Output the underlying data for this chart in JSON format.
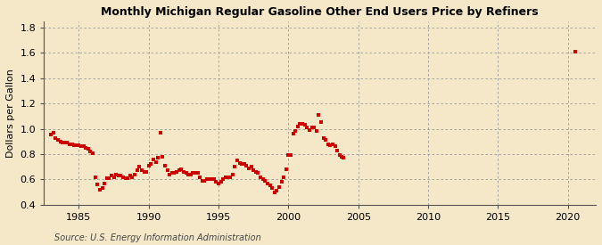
{
  "title": "Monthly Michigan Regular Gasoline Other End Users Price by Refiners",
  "ylabel": "Dollars per Gallon",
  "source": "Source: U.S. Energy Information Administration",
  "background_color": "#f5e8c8",
  "plot_bg_color": "#f5e8c8",
  "marker_color": "#cc0000",
  "xlim": [
    1982.5,
    2022
  ],
  "ylim": [
    0.4,
    1.85
  ],
  "xticks": [
    1985,
    1990,
    1995,
    2000,
    2005,
    2010,
    2015,
    2020
  ],
  "yticks": [
    0.4,
    0.6,
    0.8,
    1.0,
    1.2,
    1.4,
    1.6,
    1.8
  ],
  "data": [
    [
      1983.0,
      0.956
    ],
    [
      1983.17,
      0.97
    ],
    [
      1983.33,
      0.93
    ],
    [
      1983.5,
      0.91
    ],
    [
      1983.67,
      0.9
    ],
    [
      1983.83,
      0.89
    ],
    [
      1984.0,
      0.89
    ],
    [
      1984.17,
      0.89
    ],
    [
      1984.33,
      0.88
    ],
    [
      1984.5,
      0.88
    ],
    [
      1984.67,
      0.87
    ],
    [
      1984.83,
      0.87
    ],
    [
      1985.0,
      0.87
    ],
    [
      1985.17,
      0.86
    ],
    [
      1985.33,
      0.86
    ],
    [
      1985.5,
      0.85
    ],
    [
      1985.67,
      0.84
    ],
    [
      1985.83,
      0.82
    ],
    [
      1986.0,
      0.81
    ],
    [
      1986.17,
      0.62
    ],
    [
      1986.33,
      0.56
    ],
    [
      1986.5,
      0.52
    ],
    [
      1986.67,
      0.53
    ],
    [
      1986.83,
      0.57
    ],
    [
      1987.0,
      0.61
    ],
    [
      1987.17,
      0.61
    ],
    [
      1987.33,
      0.63
    ],
    [
      1987.5,
      0.62
    ],
    [
      1987.67,
      0.64
    ],
    [
      1987.83,
      0.63
    ],
    [
      1988.0,
      0.63
    ],
    [
      1988.17,
      0.62
    ],
    [
      1988.33,
      0.61
    ],
    [
      1988.5,
      0.61
    ],
    [
      1988.67,
      0.63
    ],
    [
      1988.83,
      0.62
    ],
    [
      1989.0,
      0.64
    ],
    [
      1989.17,
      0.67
    ],
    [
      1989.33,
      0.7
    ],
    [
      1989.5,
      0.67
    ],
    [
      1989.67,
      0.66
    ],
    [
      1989.83,
      0.66
    ],
    [
      1990.0,
      0.71
    ],
    [
      1990.17,
      0.72
    ],
    [
      1990.33,
      0.76
    ],
    [
      1990.5,
      0.74
    ],
    [
      1990.67,
      0.77
    ],
    [
      1990.83,
      0.97
    ],
    [
      1991.0,
      0.78
    ],
    [
      1991.17,
      0.71
    ],
    [
      1991.33,
      0.67
    ],
    [
      1991.5,
      0.64
    ],
    [
      1991.67,
      0.65
    ],
    [
      1991.83,
      0.65
    ],
    [
      1992.0,
      0.66
    ],
    [
      1992.17,
      0.67
    ],
    [
      1992.33,
      0.68
    ],
    [
      1992.5,
      0.66
    ],
    [
      1992.67,
      0.65
    ],
    [
      1992.83,
      0.64
    ],
    [
      1993.0,
      0.64
    ],
    [
      1993.17,
      0.65
    ],
    [
      1993.33,
      0.65
    ],
    [
      1993.5,
      0.65
    ],
    [
      1993.67,
      0.62
    ],
    [
      1993.83,
      0.59
    ],
    [
      1994.0,
      0.59
    ],
    [
      1994.17,
      0.6
    ],
    [
      1994.33,
      0.6
    ],
    [
      1994.5,
      0.6
    ],
    [
      1994.67,
      0.6
    ],
    [
      1994.83,
      0.58
    ],
    [
      1995.0,
      0.57
    ],
    [
      1995.17,
      0.58
    ],
    [
      1995.33,
      0.6
    ],
    [
      1995.5,
      0.62
    ],
    [
      1995.67,
      0.62
    ],
    [
      1995.83,
      0.62
    ],
    [
      1996.0,
      0.64
    ],
    [
      1996.17,
      0.7
    ],
    [
      1996.33,
      0.75
    ],
    [
      1996.5,
      0.73
    ],
    [
      1996.67,
      0.72
    ],
    [
      1996.83,
      0.72
    ],
    [
      1997.0,
      0.71
    ],
    [
      1997.17,
      0.69
    ],
    [
      1997.33,
      0.7
    ],
    [
      1997.5,
      0.67
    ],
    [
      1997.67,
      0.66
    ],
    [
      1997.83,
      0.65
    ],
    [
      1998.0,
      0.62
    ],
    [
      1998.17,
      0.6
    ],
    [
      1998.33,
      0.59
    ],
    [
      1998.5,
      0.57
    ],
    [
      1998.67,
      0.55
    ],
    [
      1998.83,
      0.53
    ],
    [
      1999.0,
      0.5
    ],
    [
      1999.17,
      0.51
    ],
    [
      1999.33,
      0.54
    ],
    [
      1999.5,
      0.58
    ],
    [
      1999.67,
      0.62
    ],
    [
      1999.83,
      0.68
    ],
    [
      2000.0,
      0.79
    ],
    [
      2000.17,
      0.79
    ],
    [
      2000.33,
      0.96
    ],
    [
      2000.5,
      0.98
    ],
    [
      2000.67,
      1.02
    ],
    [
      2000.83,
      1.04
    ],
    [
      2001.0,
      1.04
    ],
    [
      2001.17,
      1.03
    ],
    [
      2001.33,
      1.01
    ],
    [
      2001.5,
      0.99
    ],
    [
      2001.67,
      1.01
    ],
    [
      2001.83,
      1.01
    ],
    [
      2002.0,
      0.98
    ],
    [
      2002.17,
      1.11
    ],
    [
      2002.33,
      1.05
    ],
    [
      2002.5,
      0.93
    ],
    [
      2002.67,
      0.91
    ],
    [
      2002.83,
      0.88
    ],
    [
      2003.0,
      0.87
    ],
    [
      2003.17,
      0.88
    ],
    [
      2003.33,
      0.86
    ],
    [
      2003.5,
      0.83
    ],
    [
      2003.67,
      0.79
    ],
    [
      2003.83,
      0.78
    ],
    [
      2003.92,
      0.77
    ],
    [
      2020.5,
      1.61
    ]
  ]
}
